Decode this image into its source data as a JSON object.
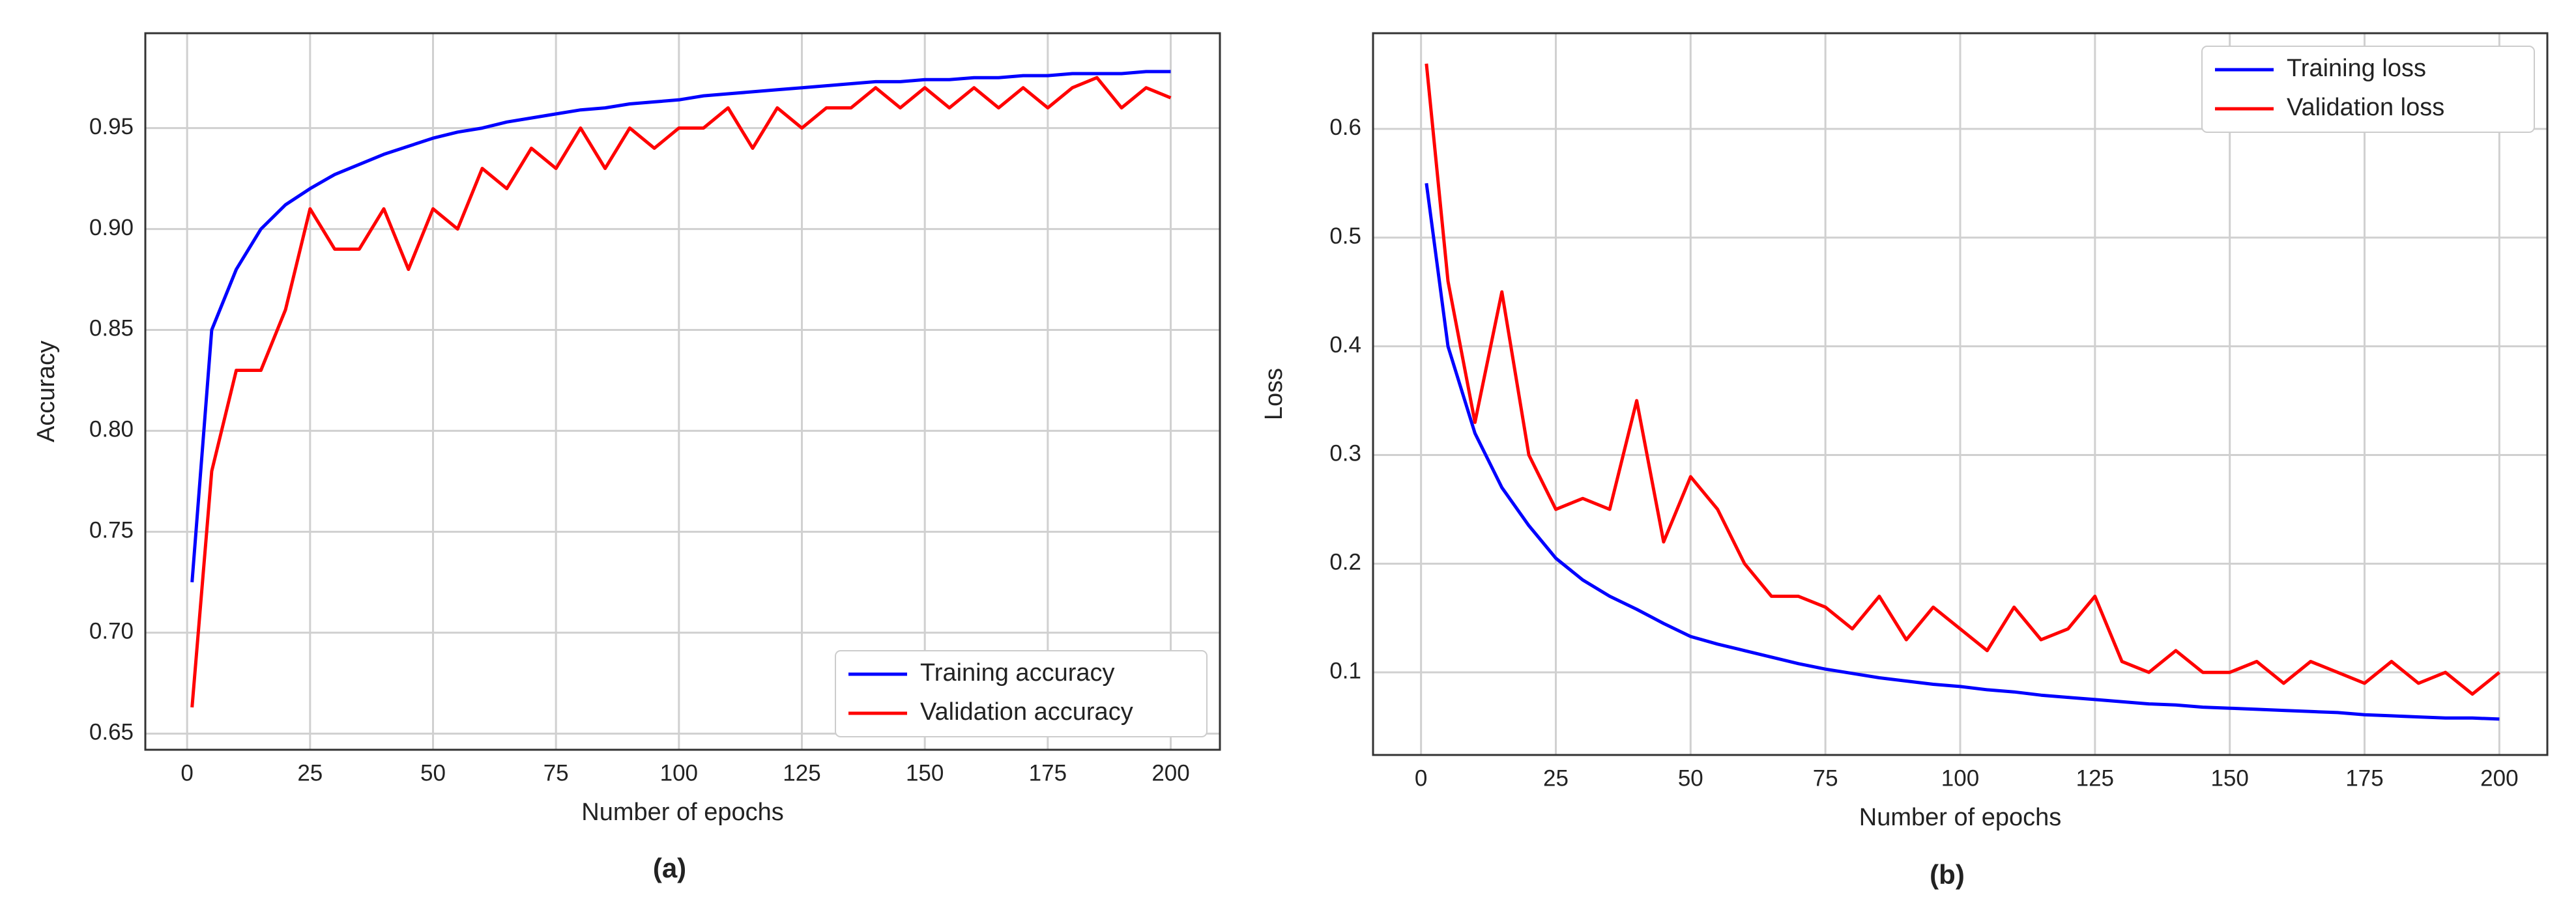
{
  "chart_data": [
    {
      "type": "line",
      "caption": "(a)",
      "x_label": "Number of epochs",
      "y_label": "Accuracy",
      "x": [
        1,
        5,
        10,
        15,
        20,
        25,
        30,
        35,
        40,
        45,
        50,
        55,
        60,
        65,
        70,
        75,
        80,
        85,
        90,
        95,
        100,
        105,
        110,
        115,
        120,
        125,
        130,
        135,
        140,
        145,
        150,
        155,
        160,
        165,
        170,
        175,
        180,
        185,
        190,
        195,
        200
      ],
      "series": [
        {
          "name": "Training accuracy",
          "color": "#0000ff",
          "values": [
            0.725,
            0.85,
            0.88,
            0.9,
            0.912,
            0.92,
            0.927,
            0.932,
            0.937,
            0.941,
            0.945,
            0.948,
            0.95,
            0.953,
            0.955,
            0.957,
            0.959,
            0.96,
            0.962,
            0.963,
            0.964,
            0.966,
            0.967,
            0.968,
            0.969,
            0.97,
            0.971,
            0.972,
            0.973,
            0.973,
            0.974,
            0.974,
            0.975,
            0.975,
            0.976,
            0.976,
            0.977,
            0.977,
            0.977,
            0.978,
            0.978
          ]
        },
        {
          "name": "Validation accuracy",
          "color": "#ff0000",
          "values": [
            0.663,
            0.78,
            0.83,
            0.83,
            0.86,
            0.91,
            0.89,
            0.89,
            0.91,
            0.88,
            0.91,
            0.9,
            0.93,
            0.92,
            0.94,
            0.93,
            0.95,
            0.93,
            0.95,
            0.94,
            0.95,
            0.95,
            0.96,
            0.94,
            0.96,
            0.95,
            0.96,
            0.96,
            0.97,
            0.96,
            0.97,
            0.96,
            0.97,
            0.96,
            0.97,
            0.96,
            0.97,
            0.975,
            0.96,
            0.97,
            0.965
          ]
        }
      ],
      "xlim": [
        -8.5,
        210
      ],
      "xticks": [
        0,
        25,
        50,
        75,
        100,
        125,
        150,
        175,
        200
      ],
      "ylim": [
        0.642,
        0.997
      ],
      "yticks": [
        0.65,
        {
          "value": 0.7,
          "label": "0.70"
        },
        0.75,
        {
          "value": 0.8,
          "label": "0.80"
        },
        0.85,
        {
          "value": 0.9,
          "label": "0.90"
        },
        0.95
      ],
      "grid": true,
      "legend": "lower right"
    },
    {
      "type": "line",
      "caption": "(b)",
      "x_label": "Number of epochs",
      "y_label": "Loss",
      "x": [
        1,
        5,
        10,
        15,
        20,
        25,
        30,
        35,
        40,
        45,
        50,
        55,
        60,
        65,
        70,
        75,
        80,
        85,
        90,
        95,
        100,
        105,
        110,
        115,
        120,
        125,
        130,
        135,
        140,
        145,
        150,
        155,
        160,
        165,
        170,
        175,
        180,
        185,
        190,
        195,
        200
      ],
      "series": [
        {
          "name": "Training loss",
          "color": "#0000ff",
          "values": [
            0.55,
            0.4,
            0.32,
            0.27,
            0.235,
            0.205,
            0.185,
            0.17,
            0.158,
            0.145,
            0.133,
            0.126,
            0.12,
            0.114,
            0.108,
            0.103,
            0.099,
            0.095,
            0.092,
            0.089,
            0.087,
            0.084,
            0.082,
            0.079,
            0.077,
            0.075,
            0.073,
            0.071,
            0.07,
            0.068,
            0.067,
            0.066,
            0.065,
            0.064,
            0.063,
            0.061,
            0.06,
            0.059,
            0.058,
            0.058,
            0.057
          ]
        },
        {
          "name": "Validation loss",
          "color": "#ff0000",
          "values": [
            0.66,
            0.46,
            0.33,
            0.45,
            0.3,
            0.25,
            0.26,
            0.25,
            0.35,
            0.22,
            0.28,
            0.25,
            0.2,
            0.17,
            0.17,
            0.16,
            0.14,
            0.17,
            0.13,
            0.16,
            0.14,
            0.12,
            0.16,
            0.13,
            0.14,
            0.17,
            0.11,
            0.1,
            0.12,
            0.1,
            0.1,
            0.11,
            0.09,
            0.11,
            0.1,
            0.09,
            0.11,
            0.09,
            0.1,
            0.08,
            0.1
          ]
        }
      ],
      "xlim": [
        -8.9,
        208.9
      ],
      "xticks": [
        0,
        25,
        50,
        75,
        100,
        125,
        150,
        175,
        200
      ],
      "ylim": [
        0.024,
        0.688
      ],
      "yticks": [
        0.1,
        0.2,
        0.3,
        0.4,
        0.5,
        0.6
      ],
      "grid": true,
      "legend": "upper right"
    }
  ]
}
